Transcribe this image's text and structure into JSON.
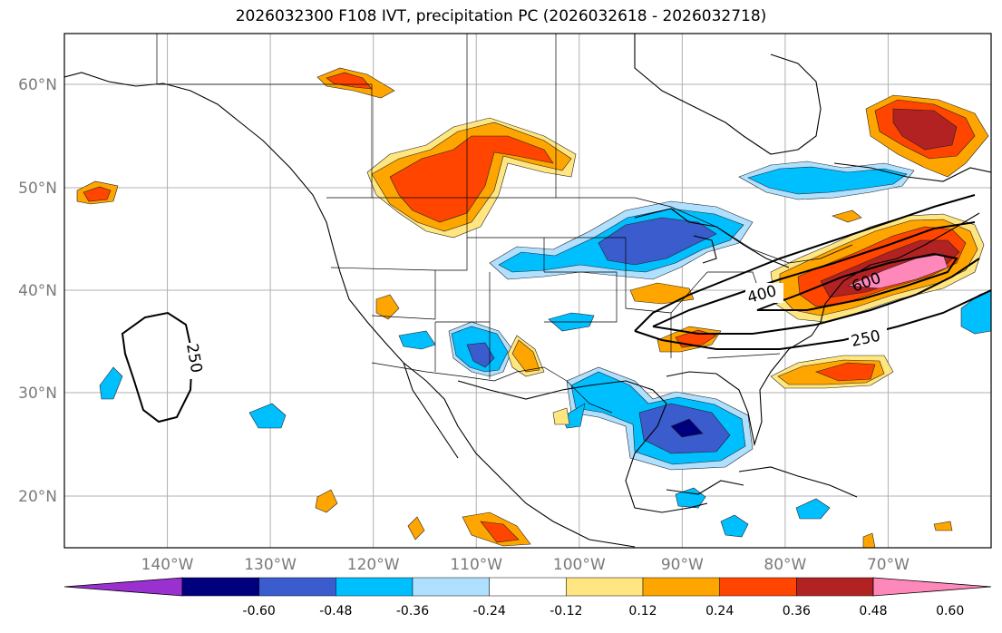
{
  "title": "2026032300 F108 IVT, precipitation PC (2026032618 - 2026032718)",
  "map": {
    "lon_range": [
      -150,
      -60
    ],
    "lat_range": [
      15,
      65
    ],
    "lat_labels": [
      "60°N",
      "50°N",
      "40°N",
      "30°N",
      "20°N"
    ],
    "lat_values": [
      60,
      50,
      40,
      30,
      20
    ],
    "lon_labels": [
      "140°W",
      "130°W",
      "120°W",
      "110°W",
      "100°W",
      "90°W",
      "80°W",
      "70°W"
    ],
    "lon_values": [
      -140,
      -130,
      -120,
      -110,
      -100,
      -90,
      -80,
      -70
    ],
    "gridlines": true,
    "ivt_contour_labels": [
      "250",
      "400",
      "600",
      "250"
    ]
  },
  "colorbar": {
    "tick_labels": [
      "-0.60",
      "-0.48",
      "-0.36",
      "-0.24",
      "-0.12",
      "0.12",
      "0.24",
      "0.36",
      "0.48",
      "0.60"
    ],
    "colors": [
      "#9b30d0",
      "#00007f",
      "#3a5ccc",
      "#00bfff",
      "#b0e0ff",
      "#ffffff",
      "#ffe680",
      "#ffa500",
      "#ff4500",
      "#b22222",
      "#ff88bb"
    ]
  }
}
